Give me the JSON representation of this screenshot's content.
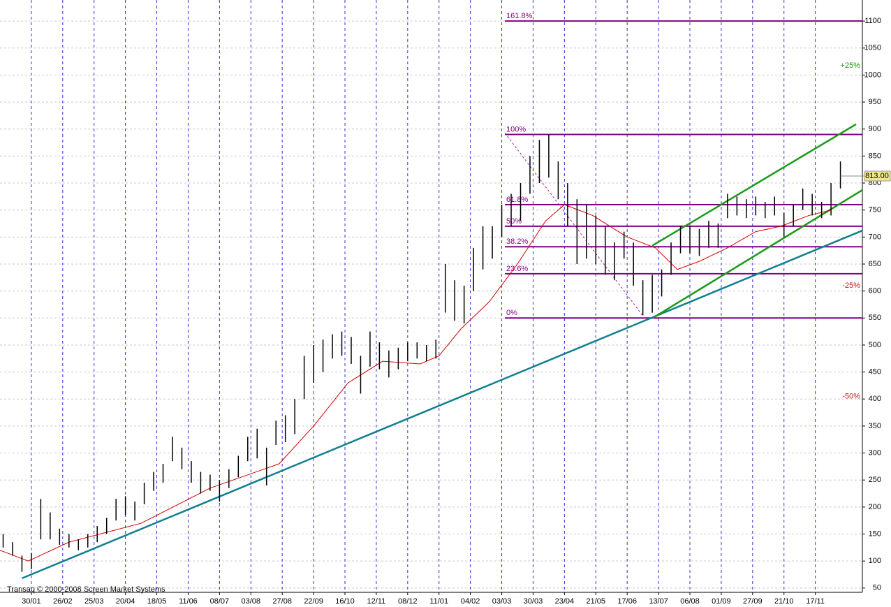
{
  "chart_data": {
    "type": "ohlc",
    "credit": "Transaq © 2000-2008 Screen Market Systems",
    "xlim": [
      0,
      275
    ],
    "ylim": [
      42,
      1139
    ],
    "xticks": [
      {
        "value": 10,
        "label": "30/01"
      },
      {
        "value": 20,
        "label": "26/02"
      },
      {
        "value": 30,
        "label": "25/03"
      },
      {
        "value": 40,
        "label": "20/04"
      },
      {
        "value": 50,
        "label": "18/05"
      },
      {
        "value": 60,
        "label": "11/06"
      },
      {
        "value": 70,
        "label": "08/07"
      },
      {
        "value": 80,
        "label": "03/08"
      },
      {
        "value": 90,
        "label": "27/08"
      },
      {
        "value": 100,
        "label": "22/09"
      },
      {
        "value": 110,
        "label": "16/10"
      },
      {
        "value": 120,
        "label": "12/11"
      },
      {
        "value": 130,
        "label": "08/12"
      },
      {
        "value": 140,
        "label": "11/01"
      },
      {
        "value": 150,
        "label": "04/02"
      },
      {
        "value": 160,
        "label": "03/03"
      },
      {
        "value": 170,
        "label": "30/03"
      },
      {
        "value": 180,
        "label": "23/04"
      },
      {
        "value": 190,
        "label": "21/05"
      },
      {
        "value": 200,
        "label": "17/06"
      },
      {
        "value": 210,
        "label": "13/07"
      },
      {
        "value": 220,
        "label": "06/08"
      },
      {
        "value": 230,
        "label": "01/09"
      },
      {
        "value": 240,
        "label": "27/09"
      },
      {
        "value": 250,
        "label": "21/10"
      },
      {
        "value": 260,
        "label": "17/11"
      }
    ],
    "yticks": [
      50,
      100,
      150,
      200,
      250,
      300,
      350,
      400,
      450,
      500,
      550,
      600,
      650,
      700,
      750,
      800,
      850,
      900,
      950,
      1000,
      1050,
      1100
    ],
    "grid": true,
    "color": "#000000",
    "x": [
      1,
      4,
      7,
      10,
      13,
      16,
      19,
      22,
      25,
      28,
      31,
      34,
      37,
      40,
      43,
      46,
      49,
      52,
      55,
      58,
      61,
      64,
      67,
      70,
      73,
      76,
      79,
      82,
      85,
      88,
      91,
      94,
      97,
      100,
      103,
      106,
      109,
      112,
      115,
      118,
      121,
      124,
      127,
      130,
      133,
      136,
      139,
      142,
      145,
      148,
      151,
      154,
      157,
      160,
      163,
      166,
      169,
      172,
      175,
      178,
      181,
      184,
      187,
      190,
      193,
      196,
      199,
      202,
      205,
      208,
      211,
      214,
      217,
      220,
      223,
      226,
      229,
      232,
      235,
      238,
      241,
      244,
      247,
      250,
      253,
      256,
      259,
      262,
      265,
      268
    ],
    "high": [
      150,
      135,
      110,
      115,
      215,
      190,
      160,
      150,
      140,
      150,
      165,
      180,
      215,
      220,
      210,
      245,
      265,
      280,
      330,
      310,
      285,
      265,
      260,
      250,
      270,
      295,
      330,
      345,
      310,
      360,
      370,
      400,
      480,
      500,
      510,
      520,
      525,
      515,
      480,
      525,
      505,
      490,
      495,
      505,
      505,
      500,
      510,
      650,
      620,
      610,
      680,
      720,
      720,
      760,
      780,
      800,
      850,
      880,
      890,
      840,
      800,
      770,
      760,
      740,
      720,
      690,
      710,
      690,
      620,
      630,
      640,
      690,
      720,
      720,
      715,
      730,
      725,
      780,
      775,
      770,
      775,
      765,
      775,
      745,
      760,
      790,
      780,
      765,
      800,
      840
    ],
    "low": [
      125,
      110,
      80,
      85,
      140,
      140,
      130,
      125,
      120,
      125,
      135,
      150,
      175,
      185,
      175,
      205,
      230,
      245,
      285,
      270,
      245,
      225,
      230,
      210,
      235,
      255,
      285,
      290,
      240,
      315,
      320,
      335,
      400,
      430,
      450,
      475,
      480,
      465,
      410,
      460,
      455,
      440,
      455,
      470,
      475,
      470,
      475,
      560,
      545,
      540,
      600,
      640,
      660,
      700,
      720,
      730,
      780,
      800,
      810,
      770,
      720,
      650,
      660,
      650,
      630,
      620,
      660,
      610,
      555,
      560,
      590,
      630,
      670,
      670,
      665,
      680,
      680,
      735,
      740,
      735,
      740,
      735,
      740,
      700,
      720,
      750,
      740,
      735,
      740,
      790
    ],
    "ma": {
      "color": "#d00000",
      "x": [
        0,
        9,
        22,
        45,
        67,
        89,
        100,
        111,
        122,
        134,
        140,
        147,
        156,
        165,
        174,
        180,
        189,
        200,
        209,
        216,
        223,
        232,
        241,
        249,
        258,
        265
      ],
      "values": [
        120,
        100,
        135,
        170,
        235,
        280,
        350,
        430,
        470,
        465,
        480,
        530,
        580,
        650,
        730,
        760,
        740,
        700,
        680,
        640,
        655,
        680,
        710,
        720,
        740,
        750
      ]
    },
    "lines": [
      {
        "x": [
          7,
          275
        ],
        "y": [
          68,
          712
        ],
        "color": "#108090"
      },
      {
        "x": [
          209,
          275
        ],
        "y": [
          553,
          787
        ],
        "color": "#1a9a1a"
      },
      {
        "x": [
          208,
          273
        ],
        "y": [
          684,
          909
        ],
        "color": "#1a9a1a"
      }
    ],
    "diagonal": {
      "x": [
        161,
        205
      ],
      "y": [
        893,
        554
      ],
      "color": "#a020a0"
    },
    "fib": {
      "color": "#800080",
      "x": [
        161,
        275
      ],
      "levels": [
        {
          "label": "161.8%",
          "value": 1100
        },
        {
          "label": "100%",
          "value": 890
        },
        {
          "label": "61.8%",
          "value": 760
        },
        {
          "label": "50%",
          "value": 720
        },
        {
          "label": "38.2%",
          "value": 682
        },
        {
          "label": "23.6%",
          "value": 632
        },
        {
          "label": "0%",
          "value": 550
        }
      ]
    },
    "markers": [
      {
        "label": "+25%",
        "value": 1017,
        "color": "#1a9a1a"
      },
      {
        "label": "-25%",
        "value": 610,
        "color": "#c02020"
      },
      {
        "label": "-50%",
        "value": 405,
        "color": "#c02020"
      }
    ],
    "last": {
      "value": 813,
      "label": "813.00"
    }
  }
}
